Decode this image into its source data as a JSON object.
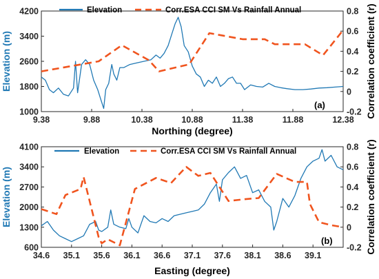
{
  "colors": {
    "elevation": "#1f78b4",
    "correlation": "#f0541e",
    "axis": "#262626"
  },
  "chart_data": [
    {
      "type": "line",
      "panel_label": "(a)",
      "xlabel": "Northing (degree)",
      "ylabel_left": "Elevation (m)",
      "ylabel_right": "Correlation coefficient (r)",
      "xlim": [
        9.38,
        12.38
      ],
      "ylim_left": [
        1000,
        4200
      ],
      "ylim_right": [
        -0.2,
        0.8
      ],
      "x_ticks": [
        "9.38",
        "9.88",
        "10.38",
        "10.88",
        "11.38",
        "11.88",
        "12.38"
      ],
      "y_ticks_left": [
        "1000",
        "1800",
        "2600",
        "3400",
        "4200"
      ],
      "y_ticks_right": [
        "-0.2",
        "0",
        "0.2",
        "0.4",
        "0.6",
        "0.8"
      ],
      "legend": [
        "Elevation",
        "Corr.ESA CCI SM Vs Rainfall Annual"
      ],
      "series": [
        {
          "name": "Elevation",
          "axis": "left",
          "style": "solid",
          "points": [
            [
              9.38,
              2100
            ],
            [
              9.42,
              2000
            ],
            [
              9.46,
              1700
            ],
            [
              9.5,
              1600
            ],
            [
              9.55,
              1750
            ],
            [
              9.6,
              1550
            ],
            [
              9.65,
              1500
            ],
            [
              9.7,
              1750
            ],
            [
              9.72,
              2600
            ],
            [
              9.74,
              1600
            ],
            [
              9.78,
              2500
            ],
            [
              9.82,
              2650
            ],
            [
              9.86,
              2500
            ],
            [
              9.9,
              2000
            ],
            [
              9.94,
              1700
            ],
            [
              9.97,
              1400
            ],
            [
              10.0,
              1100
            ],
            [
              10.02,
              1700
            ],
            [
              10.05,
              1900
            ],
            [
              10.08,
              2500
            ],
            [
              10.1,
              2200
            ],
            [
              10.13,
              2000
            ],
            [
              10.16,
              2400
            ],
            [
              10.2,
              2400
            ],
            [
              10.26,
              2500
            ],
            [
              10.33,
              2550
            ],
            [
              10.4,
              2600
            ],
            [
              10.47,
              2650
            ],
            [
              10.52,
              2800
            ],
            [
              10.56,
              2700
            ],
            [
              10.6,
              2850
            ],
            [
              10.64,
              3100
            ],
            [
              10.68,
              3500
            ],
            [
              10.71,
              3800
            ],
            [
              10.74,
              4000
            ],
            [
              10.77,
              3700
            ],
            [
              10.8,
              3100
            ],
            [
              10.84,
              2900
            ],
            [
              10.88,
              2450
            ],
            [
              10.92,
              2200
            ],
            [
              10.96,
              2100
            ],
            [
              11.0,
              1800
            ],
            [
              11.04,
              2000
            ],
            [
              11.08,
              1900
            ],
            [
              11.12,
              2100
            ],
            [
              11.16,
              1800
            ],
            [
              11.2,
              1900
            ],
            [
              11.24,
              2050
            ],
            [
              11.28,
              2100
            ],
            [
              11.32,
              1900
            ],
            [
              11.36,
              1900
            ],
            [
              11.4,
              1700
            ],
            [
              11.46,
              1850
            ],
            [
              11.52,
              1800
            ],
            [
              11.58,
              1780
            ],
            [
              11.64,
              1900
            ],
            [
              11.7,
              1800
            ],
            [
              11.76,
              1760
            ],
            [
              11.82,
              1730
            ],
            [
              11.9,
              1700
            ],
            [
              11.98,
              1700
            ],
            [
              12.06,
              1720
            ],
            [
              12.14,
              1750
            ],
            [
              12.22,
              1760
            ],
            [
              12.3,
              1780
            ],
            [
              12.38,
              1800
            ]
          ]
        },
        {
          "name": "Corr.ESA CCI SM Vs Rainfall Annual",
          "axis": "right",
          "style": "dashed",
          "points": [
            [
              9.38,
              0.2
            ],
            [
              9.95,
              0.3
            ],
            [
              10.18,
              0.46
            ],
            [
              10.45,
              0.31
            ],
            [
              10.55,
              0.2
            ],
            [
              10.85,
              0.27
            ],
            [
              11.05,
              0.58
            ],
            [
              11.38,
              0.52
            ],
            [
              11.6,
              0.52
            ],
            [
              11.7,
              0.47
            ],
            [
              12.0,
              0.47
            ],
            [
              12.18,
              0.36
            ],
            [
              12.38,
              0.61
            ]
          ]
        }
      ]
    },
    {
      "type": "line",
      "panel_label": "(b)",
      "xlabel": "Easting (degree)",
      "ylabel_left": "Elevation (m)",
      "ylabel_right": "Correlation coefficient (r)",
      "xlim": [
        34.6,
        39.6
      ],
      "ylim_left": [
        600,
        4100
      ],
      "ylim_right": [
        -0.2,
        0.8
      ],
      "x_ticks": [
        "34.6",
        "35.1",
        "35.6",
        "36.1",
        "36.6",
        "37.1",
        "37.6",
        "38.1",
        "38.6",
        "39.1"
      ],
      "y_ticks_left": [
        "600",
        "1300",
        "2000",
        "2700",
        "3400",
        "4100"
      ],
      "y_ticks_right": [
        "-0.2",
        "0",
        "0.2",
        "0.4",
        "0.6",
        "0.8"
      ],
      "legend": [
        "Elevation",
        "Corr.ESA CCI SM Vs Rainfall Annual"
      ],
      "series": [
        {
          "name": "Elevation",
          "axis": "left",
          "style": "solid",
          "points": [
            [
              34.6,
              1350
            ],
            [
              34.7,
              1500
            ],
            [
              34.8,
              1200
            ],
            [
              34.9,
              1000
            ],
            [
              35.0,
              900
            ],
            [
              35.1,
              800
            ],
            [
              35.2,
              900
            ],
            [
              35.3,
              1000
            ],
            [
              35.4,
              1400
            ],
            [
              35.5,
              1500
            ],
            [
              35.55,
              1200
            ],
            [
              35.6,
              1150
            ],
            [
              35.7,
              1300
            ],
            [
              35.75,
              1900
            ],
            [
              35.8,
              1400
            ],
            [
              35.9,
              1300
            ],
            [
              36.0,
              1250
            ],
            [
              36.05,
              1600
            ],
            [
              36.1,
              1300
            ],
            [
              36.2,
              1100
            ],
            [
              36.25,
              1400
            ],
            [
              36.3,
              1700
            ],
            [
              36.4,
              1500
            ],
            [
              36.5,
              1450
            ],
            [
              36.6,
              1600
            ],
            [
              36.7,
              1500
            ],
            [
              36.8,
              1700
            ],
            [
              36.9,
              1750
            ],
            [
              37.0,
              1800
            ],
            [
              37.1,
              1850
            ],
            [
              37.2,
              1900
            ],
            [
              37.3,
              2100
            ],
            [
              37.4,
              2500
            ],
            [
              37.5,
              2800
            ],
            [
              37.55,
              2200
            ],
            [
              37.6,
              2950
            ],
            [
              37.7,
              3200
            ],
            [
              37.8,
              3400
            ],
            [
              37.9,
              3000
            ],
            [
              38.0,
              3100
            ],
            [
              38.1,
              2500
            ],
            [
              38.2,
              2600
            ],
            [
              38.3,
              2200
            ],
            [
              38.4,
              2000
            ],
            [
              38.45,
              1200
            ],
            [
              38.5,
              1500
            ],
            [
              38.6,
              2300
            ],
            [
              38.7,
              2000
            ],
            [
              38.8,
              2400
            ],
            [
              38.9,
              3000
            ],
            [
              39.0,
              3400
            ],
            [
              39.1,
              3600
            ],
            [
              39.2,
              3700
            ],
            [
              39.25,
              4000
            ],
            [
              39.3,
              3600
            ],
            [
              39.4,
              3800
            ],
            [
              39.5,
              3400
            ],
            [
              39.6,
              3300
            ]
          ]
        },
        {
          "name": "Corr.ESA CCI SM Vs Rainfall Annual",
          "axis": "right",
          "style": "dashed",
          "points": [
            [
              34.6,
              0.18
            ],
            [
              34.85,
              0.13
            ],
            [
              35.0,
              0.32
            ],
            [
              35.25,
              0.38
            ],
            [
              35.3,
              0.5
            ],
            [
              35.55,
              -0.1
            ],
            [
              35.6,
              -0.16
            ],
            [
              35.7,
              -0.12
            ],
            [
              35.9,
              -0.18
            ],
            [
              36.15,
              0.38
            ],
            [
              36.5,
              0.49
            ],
            [
              36.75,
              0.44
            ],
            [
              37.0,
              0.6
            ],
            [
              37.2,
              0.51
            ],
            [
              37.4,
              0.54
            ],
            [
              37.7,
              0.26
            ],
            [
              38.0,
              0.28
            ],
            [
              38.2,
              0.29
            ],
            [
              38.5,
              0.53
            ],
            [
              38.8,
              0.45
            ],
            [
              39.0,
              0.45
            ],
            [
              39.05,
              0.23
            ],
            [
              39.2,
              0.05
            ],
            [
              39.4,
              0.02
            ],
            [
              39.6,
              0.0
            ]
          ]
        }
      ]
    }
  ]
}
